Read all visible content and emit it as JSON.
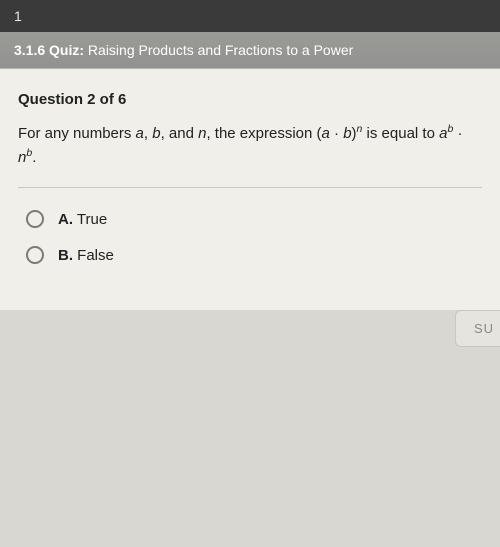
{
  "colors": {
    "top_bar_bg": "#3a3a3a",
    "quiz_header_bg": "#929290",
    "content_bg": "#f0efe9",
    "body_bg": "#d8d7d2",
    "text": "#222222",
    "radio_border": "#7a7a78",
    "submit_bg": "#e5e4de",
    "submit_text": "#8a8a85",
    "divider": "#c8c7c0"
  },
  "top_bar": {
    "text": "1"
  },
  "quiz_header": {
    "prefix": "3.1.6 Quiz:",
    "title": "Raising Products and Fractions to a Power"
  },
  "question": {
    "number_label": "Question 2 of 6",
    "text_pre": "For any numbers ",
    "var_a": "a",
    "comma1": ", ",
    "var_b": "b",
    "comma2": ", and ",
    "var_n": "n",
    "text_mid": ", the expression (",
    "expr_a": "a",
    "dot1": " · ",
    "expr_b": "b",
    "paren": ")",
    "sup_n": "n",
    "text_eq": " is equal to ",
    "expr_a2": "a",
    "sup_b": "b",
    "dot2": " · ",
    "expr_n2": "n",
    "sup_b2": "b",
    "period": "."
  },
  "options": [
    {
      "letter": "A.",
      "text": "True"
    },
    {
      "letter": "B.",
      "text": "False"
    }
  ],
  "submit": {
    "label": "SU"
  }
}
